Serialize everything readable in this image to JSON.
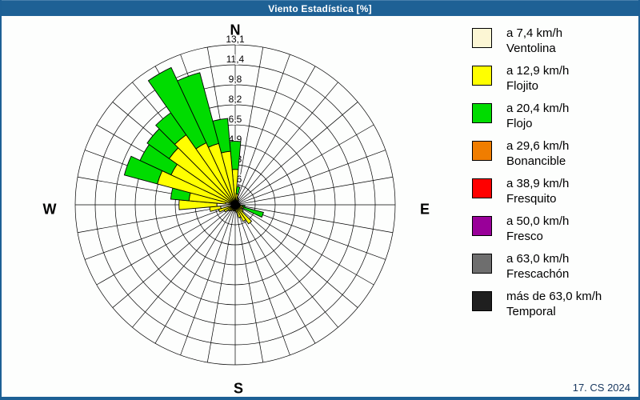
{
  "window": {
    "title": "Viento Estadística [%]",
    "footer": "17. CS 2024",
    "title_bar_color": "#1e6195"
  },
  "compass": {
    "north": "N",
    "east": "E",
    "south": "S",
    "west": "W"
  },
  "radial_axis": {
    "unit": "%",
    "rings": 8,
    "max": 13.1,
    "tick_labels": [
      "1,6",
      "3,3",
      "4,9",
      "6,5",
      "8,2",
      "9,8",
      "11,4",
      "13,1"
    ]
  },
  "legend": {
    "items": [
      {
        "speed": "a 7,4 km/h",
        "name": "Ventolina",
        "color": "#fcf6d4"
      },
      {
        "speed": "a 12,9 km/h",
        "name": "Flojito",
        "color": "#ffff00"
      },
      {
        "speed": "a 20,4 km/h",
        "name": "Flojo",
        "color": "#00dc00"
      },
      {
        "speed": "a 29,6 km/h",
        "name": "Bonancible",
        "color": "#f07d00"
      },
      {
        "speed": "a 38,9 km/h",
        "name": "Fresquito",
        "color": "#ff0000"
      },
      {
        "speed": "a 50,0 km/h",
        "name": "Fresco",
        "color": "#990099"
      },
      {
        "speed": "a 63,0 km/h",
        "name": "Frescachón",
        "color": "#6e6e6e"
      },
      {
        "speed": "más de 63,0 km/h",
        "name": "Temporal",
        "color": "#1f1f1f"
      }
    ]
  },
  "chart_data": {
    "type": "wind-rose (polar stacked bar)",
    "title": "Viento Estadística [%]",
    "units": "% frequency",
    "sector_width_deg": 10,
    "directions_deg": [
      0,
      10,
      20,
      30,
      40,
      50,
      60,
      70,
      80,
      90,
      100,
      110,
      120,
      130,
      140,
      150,
      160,
      170,
      180,
      190,
      200,
      210,
      220,
      230,
      240,
      250,
      260,
      270,
      280,
      290,
      300,
      310,
      320,
      330,
      340,
      350
    ],
    "ring_values": [
      1.6,
      3.3,
      4.9,
      6.5,
      8.2,
      9.8,
      11.4,
      13.1
    ],
    "grid": {
      "spokes_every_deg": 10,
      "rings": 8,
      "outer_value": 13.1
    },
    "series": [
      {
        "name": "Ventolina (a 7,4 km/h)",
        "color": "#fcf6d4",
        "values": [
          0.3,
          0.2,
          0.1,
          0.1,
          0.1,
          0.1,
          0.1,
          0.1,
          0.1,
          0.1,
          0.2,
          0.2,
          0.2,
          0.2,
          0.3,
          0.3,
          0.2,
          0.2,
          0.2,
          0.2,
          0.2,
          0.2,
          0.2,
          0.2,
          0.3,
          0.4,
          1.2,
          1.5,
          0.8,
          0.5,
          0.4,
          0.3,
          0.3,
          0.3,
          0.3,
          0.3
        ]
      },
      {
        "name": "Flojito (a 12,9 km/h)",
        "color": "#ffff00",
        "values": [
          2.6,
          0.7,
          0.5,
          0.4,
          0.3,
          0.2,
          0.2,
          0.2,
          0.3,
          0.3,
          0.4,
          0.5,
          0.4,
          0.6,
          1.6,
          1.2,
          0.9,
          0.4,
          0.3,
          0.3,
          0.3,
          0.3,
          0.4,
          0.5,
          0.7,
          1.0,
          0.9,
          3.1,
          3.0,
          6.1,
          5.4,
          6.3,
          6.7,
          5.3,
          4.9,
          4.1
        ]
      },
      {
        "name": "Flojo (a 20,4 km/h)",
        "color": "#00dc00",
        "values": [
          2.3,
          0.6,
          0,
          0,
          0,
          0,
          0,
          0,
          0,
          0,
          0.2,
          1.7,
          0,
          0,
          0,
          0,
          0,
          0,
          0,
          0,
          0,
          0,
          0,
          0,
          0,
          0,
          0,
          0,
          1.5,
          2.8,
          2.8,
          2.2,
          2.2,
          6.8,
          6.0,
          2.7
        ]
      },
      {
        "name": "Bonancible (a 29,6 km/h)",
        "color": "#f07d00",
        "values": [
          0,
          0,
          0,
          0,
          0,
          0,
          0,
          0,
          0,
          0,
          0,
          0,
          0,
          0,
          0,
          0,
          0,
          0,
          0,
          0,
          0,
          0,
          0,
          0,
          0,
          0,
          0,
          0,
          0,
          0,
          0,
          0,
          0,
          0,
          0,
          0
        ]
      },
      {
        "name": "Fresquito (a 38,9 km/h)",
        "color": "#ff0000",
        "values": [
          0,
          0,
          0,
          0,
          0,
          0,
          0,
          0,
          0,
          0,
          0,
          0,
          0,
          0,
          0,
          0,
          0,
          0,
          0,
          0,
          0,
          0,
          0,
          0,
          0,
          0,
          0,
          0,
          0,
          0,
          0,
          0,
          0,
          0,
          0,
          0
        ]
      },
      {
        "name": "Fresco (a 50,0 km/h)",
        "color": "#990099",
        "values": [
          0,
          0,
          0,
          0,
          0,
          0,
          0,
          0,
          0,
          0,
          0,
          0,
          0,
          0,
          0,
          0,
          0,
          0,
          0,
          0,
          0,
          0,
          0,
          0,
          0,
          0,
          0,
          0,
          0,
          0,
          0,
          0,
          0,
          0,
          0,
          0
        ]
      },
      {
        "name": "Frescachón (a 63,0 km/h)",
        "color": "#6e6e6e",
        "values": [
          0,
          0,
          0,
          0,
          0,
          0,
          0,
          0,
          0,
          0,
          0,
          0,
          0,
          0,
          0,
          0,
          0,
          0,
          0,
          0,
          0,
          0,
          0,
          0,
          0,
          0,
          0,
          0,
          0,
          0,
          0,
          0,
          0,
          0,
          0,
          0
        ]
      },
      {
        "name": "Temporal (más de 63,0 km/h)",
        "color": "#1f1f1f",
        "values": [
          0,
          0,
          0,
          0,
          0,
          0,
          0,
          0,
          0,
          0,
          0,
          0,
          0,
          0,
          0,
          0,
          0,
          0,
          0,
          0,
          0,
          0,
          0,
          0,
          0,
          0,
          0,
          0,
          0,
          0,
          0,
          0,
          0,
          0,
          0,
          0
        ]
      }
    ],
    "legend_position": "right",
    "center_marker_color": "#000000"
  }
}
